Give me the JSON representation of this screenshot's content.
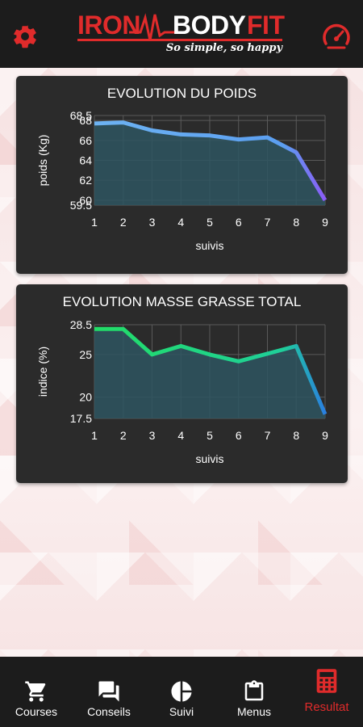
{
  "header": {
    "logo_iron": "IRON",
    "logo_body": "BODY",
    "logo_fit": "FIT",
    "tagline": "So simple, so happy",
    "settings_icon": "gear-icon",
    "dashboard_icon": "speedometer-icon",
    "accent_color": "#e02b2b"
  },
  "charts": [
    {
      "title": "EVOLUTION DU POIDS",
      "chart_data": {
        "type": "area",
        "title": "EVOLUTION DU POIDS",
        "xlabel": "suivis",
        "ylabel": "poids (Kg)",
        "x": [
          1,
          2,
          3,
          4,
          5,
          6,
          7,
          8,
          9
        ],
        "values": [
          67.7,
          67.8,
          67.0,
          66.6,
          66.5,
          66.1,
          66.3,
          64.8,
          60.0
        ],
        "xlim": [
          1,
          9
        ],
        "ylim": [
          59.5,
          68.5
        ],
        "yticks": [
          "59.5",
          "60",
          "62",
          "64",
          "66",
          "68",
          "68.5"
        ],
        "ytick_values": [
          59.5,
          60,
          62,
          64,
          66,
          68,
          68.5
        ],
        "grid": true,
        "line_colors": [
          "#6db3f2",
          "#5b9ef0",
          "#8b5cf6"
        ]
      }
    },
    {
      "title": "EVOLUTION MASSE GRASSE TOTAL",
      "chart_data": {
        "type": "area",
        "title": "EVOLUTION MASSE GRASSE TOTAL",
        "xlabel": "suivis",
        "ylabel": "indice (%)",
        "x": [
          1,
          2,
          3,
          4,
          5,
          6,
          7,
          8,
          9
        ],
        "values": [
          28.0,
          28.0,
          25.0,
          26.0,
          25.0,
          24.2,
          25.1,
          26.0,
          18.0
        ],
        "xlim": [
          1,
          9
        ],
        "ylim": [
          17.5,
          28.5
        ],
        "yticks": [
          "17.5",
          "20",
          "25",
          "28.5"
        ],
        "ytick_values": [
          17.5,
          20,
          25,
          28.5
        ],
        "grid": true,
        "line_colors": [
          "#22dd66",
          "#1fcf9a",
          "#2a7fe0"
        ]
      }
    }
  ],
  "nav": [
    {
      "label": "Courses",
      "icon": "cart-icon",
      "active": false
    },
    {
      "label": "Conseils",
      "icon": "chat-icon",
      "active": false
    },
    {
      "label": "Suivi",
      "icon": "pie-chart-icon",
      "active": false
    },
    {
      "label": "Menus",
      "icon": "clipboard-icon",
      "active": false
    },
    {
      "label": "Resultat",
      "icon": "calculator-icon",
      "active": true
    }
  ]
}
